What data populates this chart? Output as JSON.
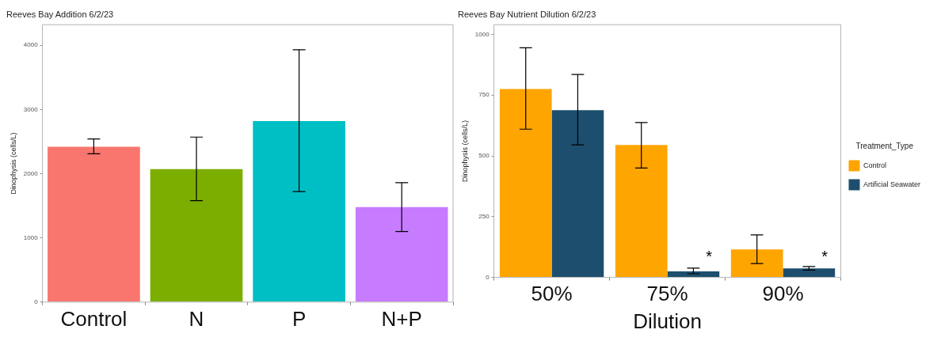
{
  "chart_data": [
    {
      "type": "bar",
      "title": "Reeves Bay Addition 6/2/23",
      "ylabel": "Dinophysis (cells/L)",
      "categories": [
        "Control",
        "N",
        "P",
        "N+P"
      ],
      "values": [
        2420,
        2070,
        2820,
        1480
      ],
      "colors": [
        "#f8766d",
        "#7cae00",
        "#00bfc4",
        "#c77cff"
      ],
      "errors": [
        [
          2310,
          2540
        ],
        [
          1580,
          2570
        ],
        [
          1720,
          3930
        ],
        [
          1100,
          1860
        ]
      ],
      "ylim": [
        0,
        4320
      ],
      "yticks": [
        0,
        1000,
        2000,
        3000,
        4000
      ],
      "grid": false,
      "legend": false
    },
    {
      "type": "bar",
      "title": "Reeves Bay Nutrient Dilution 6/2/23",
      "ylabel": "Dinophysis (cells/L)",
      "xlabel": "Dilution",
      "legend_title": "Treatment_Type",
      "categories": [
        "50%",
        "75%",
        "90%"
      ],
      "series": [
        {
          "name": "Control",
          "color": "#ffa500",
          "values": [
            775,
            545,
            115
          ],
          "errors": [
            [
              610,
              945
            ],
            [
              450,
              637
            ],
            [
              57,
              175
            ]
          ]
        },
        {
          "name": "Artificial Seawater",
          "color": "#1d4e6e",
          "values": [
            688,
            25,
            37
          ],
          "errors": [
            [
              545,
              835
            ],
            [
              15,
              38
            ],
            [
              30,
              45
            ]
          ]
        }
      ],
      "annotations": [
        {
          "text": "*",
          "x": "75%",
          "y": 81
        },
        {
          "text": "*",
          "x": "90%",
          "y": 81
        }
      ],
      "ylim": [
        0,
        1040
      ],
      "yticks": [
        0,
        250,
        500,
        750,
        1000
      ],
      "grid": false,
      "legend": "right"
    }
  ]
}
